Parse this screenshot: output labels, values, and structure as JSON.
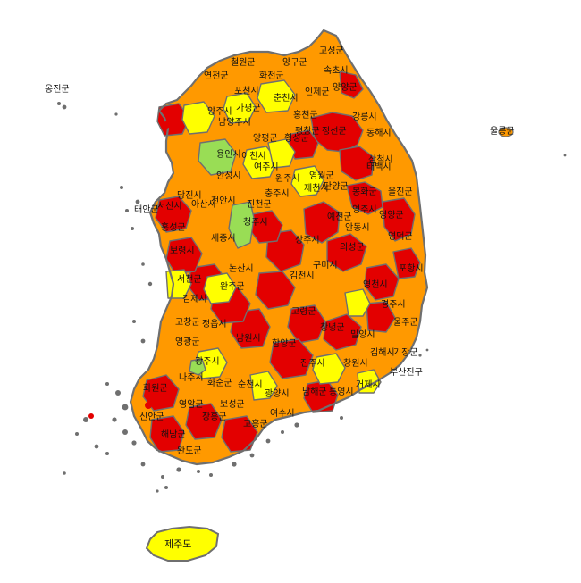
{
  "colors": {
    "red": "#e30000",
    "orange": "#ff9900",
    "yellow": "#ffff00",
    "green": "#99dd55",
    "border": "#6f6f6f"
  },
  "labels": {
    "ongjin": "옹진군",
    "ulleung": "울릉군",
    "cheorwon": "철원군",
    "yanggu": "양구군",
    "goseong_gw": "고성군",
    "yeoncheon": "연천군",
    "hwacheon": "화천군",
    "sokcho": "속초시",
    "inje": "인제군",
    "yangyang": "양양군",
    "pocheon": "포천시",
    "chuncheon": "춘천시",
    "gapyeong": "가평군",
    "hongcheon": "홍천군",
    "gangneung": "강릉시",
    "yangju": "양주시",
    "namyangju": "남양주시",
    "pyeongchang": "평창군",
    "jeongseon": "정선군",
    "donghae": "동해시",
    "yangpyeong": "양평군",
    "hoengseong": "횡성군",
    "samcheok": "삼척시",
    "yongin": "용인시",
    "icheon": "이천시",
    "yeoju": "여주시",
    "taebaek": "태백시",
    "anseong": "안성시",
    "wonju": "원주시",
    "yeongwol": "영월군",
    "chungju": "충주시",
    "jecheon": "제천시",
    "danyang": "단양군",
    "bonghwa": "봉화군",
    "uljin": "울진군",
    "dangjin": "당진시",
    "taean": "태안군",
    "seosan": "서산시",
    "asan": "아산시",
    "cheonan": "천안시",
    "jincheon": "진천군",
    "cheongju": "청주시",
    "yeongju": "영주시",
    "andong": "안동시",
    "yeongyang": "영양군",
    "yecheon": "예천군",
    "hongseong": "홍성군",
    "sejong": "세종시",
    "sangju": "상주시",
    "uiseong": "의성군",
    "yeongdeok": "영덕군",
    "gumi": "구미시",
    "pohang": "포항시",
    "boryeong": "보령시",
    "nonsan": "논산시",
    "gimcheon": "김천시",
    "seocheon": "서천군",
    "gimje": "김제시",
    "wanju": "완주군",
    "yeongcheon": "영천시",
    "gyeongju": "경주시",
    "goryeong": "고령군",
    "gochang": "고창군",
    "jeongeup": "정읍시",
    "namwon": "남원시",
    "hamyang": "함양군",
    "changnyeong": "창녕군",
    "miryang": "밀양시",
    "ulju": "울주군",
    "yeonggwang": "영광군",
    "gwangju": "광주시",
    "gimhae": "김해시",
    "gijang": "기장군",
    "naju": "나주시",
    "hwasun": "화순군",
    "jinju": "진주시",
    "changwon": "창원시",
    "busanjin": "부산진구",
    "suncheon": "순천시",
    "gwangyang": "광양시",
    "namhae": "남해군",
    "geoje": "거제시",
    "tongyeong": "통영시",
    "hwawon": "화원군",
    "yeongam": "영암군",
    "haenam": "해남군",
    "jangheung": "장흥군",
    "boseong": "보성군",
    "goheung": "고흥군",
    "yeosu": "여수시",
    "wando": "완도군",
    "sinan": "신안군",
    "jeju": "제주도"
  }
}
